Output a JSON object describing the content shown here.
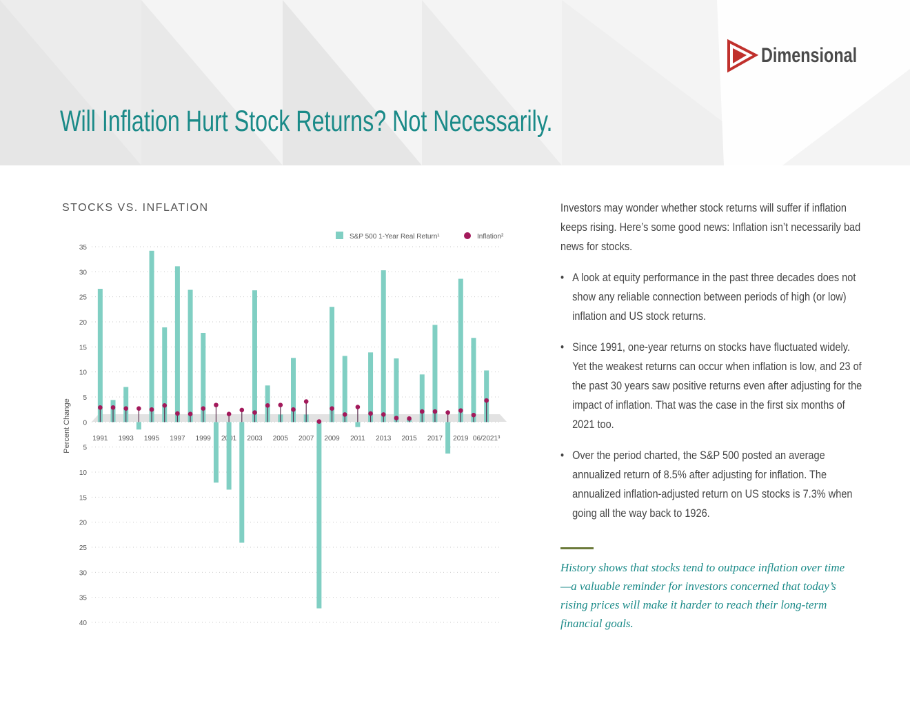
{
  "header": {
    "logo": "Dimensional",
    "title": "Will Inflation Hurt Stock Returns? Not Necessarily."
  },
  "chart_data": {
    "type": "bar",
    "title": "STOCKS VS. INFLATION",
    "y_label": "Percent Change",
    "categories": [
      "1991",
      null,
      "1993",
      null,
      "1995",
      null,
      "1997",
      null,
      "1999",
      null,
      "2001",
      null,
      "2003",
      null,
      "2005",
      null,
      "2007",
      null,
      "2009",
      null,
      "2011",
      null,
      "2013",
      null,
      "2015",
      null,
      "2017",
      null,
      "2019",
      null,
      "06/2021³"
    ],
    "series": [
      {
        "name": "S&P 500 1-Year Real Return¹",
        "color": "#80cfc3",
        "marker": "bar",
        "values": [
          26.6,
          4.4,
          7.0,
          -1.5,
          34.2,
          18.9,
          31.1,
          26.4,
          17.8,
          -12.1,
          -13.5,
          -24.1,
          26.3,
          7.3,
          1.5,
          12.8,
          1.5,
          -37.2,
          23.0,
          13.2,
          -1.0,
          13.9,
          30.3,
          12.7,
          0.6,
          9.5,
          19.4,
          -6.3,
          28.6,
          16.8,
          10.3
        ]
      },
      {
        "name": "Inflation²",
        "color": "#a3195b",
        "marker": "lollipop",
        "values": [
          2.9,
          2.9,
          2.7,
          2.7,
          2.5,
          3.3,
          1.7,
          1.6,
          2.7,
          3.4,
          1.6,
          2.4,
          1.9,
          3.3,
          3.4,
          2.5,
          4.1,
          0.1,
          2.7,
          1.5,
          3.0,
          1.7,
          1.5,
          0.8,
          0.7,
          2.1,
          2.1,
          1.9,
          2.3,
          1.4,
          4.3
        ]
      }
    ],
    "ylim": [
      -40,
      35
    ],
    "yticks": [
      {
        "value": -40,
        "label": "40"
      },
      {
        "value": -35,
        "label": "35"
      },
      {
        "value": -30,
        "label": "30"
      },
      {
        "value": -25,
        "label": "25"
      },
      {
        "value": -20,
        "label": "20"
      },
      {
        "value": -15,
        "label": "15"
      },
      {
        "value": -10,
        "label": "10"
      },
      {
        "value": -5,
        "label": "5"
      },
      0,
      5,
      10,
      15,
      20,
      25,
      30,
      35
    ],
    "grid": true,
    "legend": "top-right"
  },
  "body": {
    "intro": "Investors may wonder whether stock returns will suffer if inflation keeps rising. Here’s some good news: Inflation isn’t necessarily bad news for stocks.",
    "bullets": [
      "A look at equity performance in the past three decades does not show any reliable connection between periods of high (or low) inflation and US stock returns.",
      "Since 1991, one-year returns on stocks have fluctuated widely. Yet the weakest returns can occur when inflation is low, and 23 of the past 30 years saw positive returns even after adjusting for the impact of inflation. That was the case in the first six months of 2021 too.",
      "Over the period charted, the S&P 500 posted an average annualized return of 8.5% after adjusting for inflation. The annualized inflation-adjusted return on US stocks is 7.3% when going all the way back to 1926."
    ],
    "quote": "History shows that stocks tend to outpace inflation over time—a valuable reminder for investors concerned that today’s rising prices will make it harder to reach their long-term financial goals."
  }
}
